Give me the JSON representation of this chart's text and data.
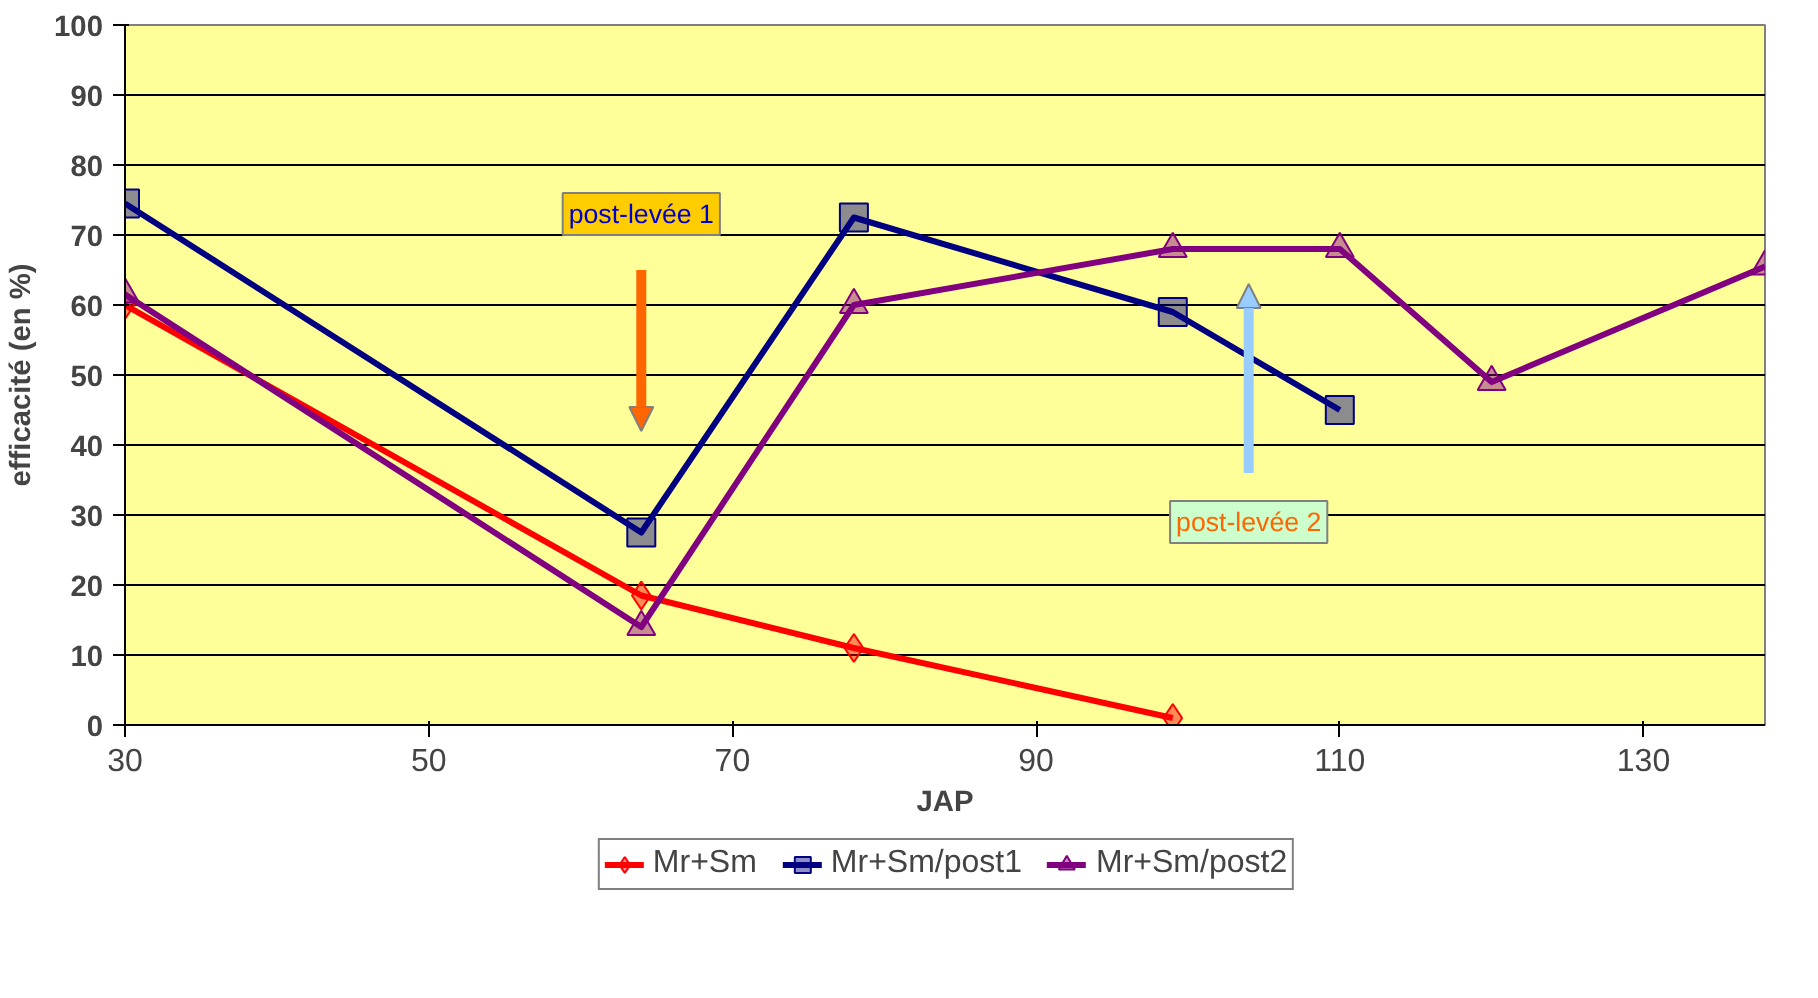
{
  "chart_data": {
    "type": "line",
    "xlabel": "JAP",
    "ylabel": "efficacité (en %)",
    "xlim": [
      30,
      138
    ],
    "xticks": [
      30,
      50,
      70,
      90,
      110,
      130
    ],
    "ylim": [
      0,
      100
    ],
    "yticks": [
      0,
      10,
      20,
      30,
      40,
      50,
      60,
      70,
      80,
      90,
      100
    ],
    "grid": "y",
    "legend": "bottom",
    "series": [
      {
        "name": "Mr+Sm",
        "color": "#ff0000",
        "marker": "diamond",
        "x": [
          30,
          64,
          78,
          99
        ],
        "values": [
          60,
          18.5,
          11,
          1
        ]
      },
      {
        "name": "Mr+Sm/post1",
        "color": "#000080",
        "marker": "square",
        "x": [
          30,
          64,
          78,
          99,
          110
        ],
        "values": [
          74.5,
          27.5,
          72.5,
          59,
          45
        ]
      },
      {
        "name": "Mr+Sm/post2",
        "color": "#800080",
        "marker": "triangle",
        "x": [
          30,
          64,
          78,
          99,
          110,
          120,
          138
        ],
        "values": [
          61.5,
          14,
          60,
          68,
          68,
          49,
          65.5
        ]
      }
    ],
    "annotations": [
      "post-levée 1",
      "post-levée 2"
    ]
  }
}
